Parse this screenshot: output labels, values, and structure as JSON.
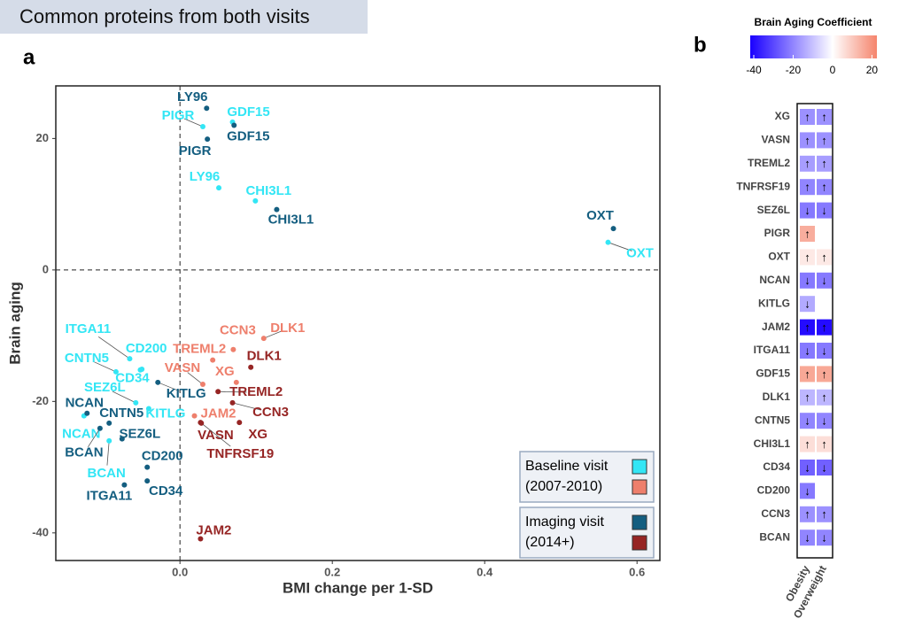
{
  "header": {
    "title": "Common proteins from both visits"
  },
  "chart_data": [
    {
      "type": "scatter",
      "panel_label": "a",
      "x_label": "BMI change per 1-SD",
      "y_label": "Brain aging",
      "xlim": [
        -0.163,
        0.63
      ],
      "ylim": [
        -44.2,
        28.0
      ],
      "xticks": [
        {
          "value": 0,
          "label": "0.0"
        },
        0.2,
        0.4,
        0.6
      ],
      "yticks": [
        -40,
        -20,
        0,
        20
      ],
      "series": [
        {
          "name": "Baseline visit",
          "subtitle": "(2007-2010)",
          "groups": [
            {
              "color": "#33e6f5",
              "labels": [
                "GDF15",
                "PIGR",
                "LY96",
                "CHI3L1",
                "OXT",
                "ITGA11",
                "CD200",
                "CNTN5",
                "CD34",
                "SEZ6L",
                "KITLG",
                "NCAN",
                "BCAN"
              ],
              "x": [
                0.069,
                0.03,
                0.051,
                0.099,
                0.562,
                -0.066,
                -0.05,
                -0.084,
                -0.052,
                -0.058,
                -0.041,
                -0.126,
                -0.093
              ],
              "y": [
                22.5,
                21.8,
                12.5,
                10.5,
                4.2,
                -13.5,
                -15.1,
                -15.5,
                -15.2,
                -20.2,
                -21.1,
                -22.2,
                -26.0
              ]
            },
            {
              "color": "#ee7f6c",
              "labels": [
                "DLK1",
                "CCN3",
                "TREML2",
                "VASN",
                "XG",
                "JAM2"
              ],
              "x": [
                0.11,
                0.07,
                0.043,
                0.03,
                0.074,
                0.019
              ],
              "y": [
                -10.4,
                -12.1,
                -13.7,
                -17.4,
                -17.1,
                -22.2
              ]
            }
          ]
        },
        {
          "name": "Imaging visit",
          "subtitle": "(2014+)",
          "groups": [
            {
              "color": "#145e80",
              "labels": [
                "LY96",
                "PIGR",
                "GDF15",
                "CHI3L1",
                "OXT",
                "KITLG",
                "CNTN5",
                "NCAN",
                "SEZ6L",
                "CD200",
                "CD34",
                "ITGA11",
                "BCAN"
              ],
              "x": [
                0.035,
                0.036,
                0.071,
                0.127,
                0.569,
                -0.029,
                -0.093,
                -0.122,
                -0.076,
                -0.043,
                -0.043,
                -0.073,
                -0.105
              ],
              "y": [
                24.6,
                19.9,
                22.0,
                9.2,
                6.3,
                -17.1,
                -23.3,
                -21.8,
                -25.7,
                -30.0,
                -32.1,
                -32.7,
                -24.1
              ]
            },
            {
              "color": "#962524",
              "labels": [
                "DLK1",
                "TREML2",
                "CCN3",
                "XG",
                "VASN",
                "TNFRSF19",
                "JAM2"
              ],
              "x": [
                0.093,
                0.05,
                0.069,
                0.078,
                0.027,
                0.028,
                0.027
              ],
              "y": [
                -14.8,
                -18.5,
                -20.2,
                -23.2,
                -23.2,
                -23.3,
                -40.9
              ]
            }
          ]
        }
      ]
    },
    {
      "type": "heatmap",
      "panel_label": "b",
      "colorbar_title": "Brain Aging Coefficient",
      "clim": [
        -41.8,
        22.5
      ],
      "cticks": [
        -40,
        -20,
        0,
        20
      ],
      "colorscale": [
        "#1a00ff",
        "#ffffff",
        "#f5846c"
      ],
      "rows": [
        "XG",
        "VASN",
        "TREML2",
        "TNFRSF19",
        "SEZ6L",
        "PIGR",
        "OXT",
        "NCAN",
        "KITLG",
        "JAM2",
        "ITGA11",
        "GDF15",
        "DLK1",
        "CNTN5",
        "CHI3L1",
        "CD34",
        "CD200",
        "CCN3",
        "BCAN"
      ],
      "columns": [
        "Obesity",
        "Overweight"
      ],
      "values": [
        [
          -18,
          -18
        ],
        [
          -18,
          -18
        ],
        [
          -16,
          -16
        ],
        [
          -20,
          -20
        ],
        [
          -22,
          -22
        ],
        [
          15,
          null
        ],
        [
          4,
          4
        ],
        [
          -22,
          -22
        ],
        [
          -14,
          null
        ],
        [
          -40,
          -40
        ],
        [
          -22,
          -22
        ],
        [
          16,
          16
        ],
        [
          -12,
          -12
        ],
        [
          -20,
          -20
        ],
        [
          6,
          6
        ],
        [
          -26,
          -26
        ],
        [
          -22,
          null
        ],
        [
          -18,
          -18
        ],
        [
          -20,
          -20
        ]
      ],
      "arrows": [
        [
          "↑",
          "↑"
        ],
        [
          "↑",
          "↑"
        ],
        [
          "↑",
          "↑"
        ],
        [
          "↑",
          "↑"
        ],
        [
          "↓",
          "↓"
        ],
        [
          "↑",
          null
        ],
        [
          "↑",
          "↑"
        ],
        [
          "↓",
          "↓"
        ],
        [
          "↓",
          null
        ],
        [
          "↑",
          "↑"
        ],
        [
          "↓",
          "↓"
        ],
        [
          "↑",
          "↑"
        ],
        [
          "↑",
          "↑"
        ],
        [
          "↓",
          "↓"
        ],
        [
          "↑",
          "↑"
        ],
        [
          "↓",
          "↓"
        ],
        [
          "↓",
          null
        ],
        [
          "↑",
          "↑"
        ],
        [
          "↓",
          "↓"
        ]
      ]
    }
  ]
}
